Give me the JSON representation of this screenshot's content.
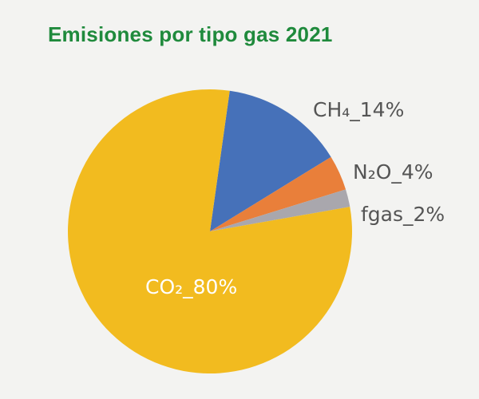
{
  "chart_data": {
    "type": "pie",
    "title": "Emisiones por tipo gas 2021",
    "slices": [
      {
        "label": "CH₄_14%",
        "value": 14,
        "color": "#4671b9"
      },
      {
        "label": "N₂O_4%",
        "value": 4,
        "color": "#e97f3a"
      },
      {
        "label": "fgas_2%",
        "value": 2,
        "color": "#a9a7ad"
      },
      {
        "label": "CO₂_80%",
        "value": 80,
        "color": "#f2bb1f"
      }
    ],
    "label_colors": {
      "outside": "#555555",
      "inside": "#ffffff"
    }
  }
}
